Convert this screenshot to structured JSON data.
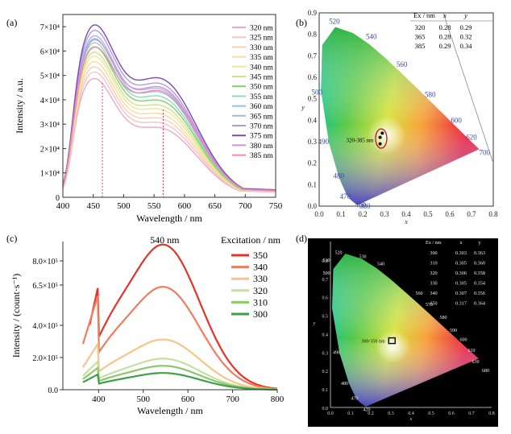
{
  "chart_data": [
    {
      "panel": "(a)",
      "type": "line",
      "xlabel": "Wavelength / nm",
      "ylabel": "Intensity / a.u.",
      "xlim": [
        400,
        750
      ],
      "ylim": [
        0,
        75000
      ],
      "x_ticks": [
        "400",
        "450",
        "500",
        "550",
        "600",
        "650",
        "700",
        "750"
      ],
      "y_ticks": [
        "0",
        "1×10⁴",
        "2×10⁴",
        "3×10⁴",
        "4×10⁴",
        "5×10⁴",
        "6×10⁴",
        "7×10⁴"
      ],
      "marker_lines_x": [
        465,
        565
      ],
      "legend_position": "top-right",
      "series": [
        {
          "name": "320 nm",
          "color": "#f4a6c4",
          "peak": 48000
        },
        {
          "name": "325 nm",
          "color": "#f7c2c8",
          "peak": 50500
        },
        {
          "name": "330 nm",
          "color": "#f8d0b4",
          "peak": 52500
        },
        {
          "name": "335 nm",
          "color": "#f6dca0",
          "peak": 54500
        },
        {
          "name": "340 nm",
          "color": "#f0e690",
          "peak": 56500
        },
        {
          "name": "345 nm",
          "color": "#cde28c",
          "peak": 58000
        },
        {
          "name": "350 nm",
          "color": "#7fcf6a",
          "peak": 60000
        },
        {
          "name": "355 nm",
          "color": "#8fd9c0",
          "peak": 61500
        },
        {
          "name": "360 nm",
          "color": "#8ec7e6",
          "peak": 63000
        },
        {
          "name": "365 nm",
          "color": "#a4b9ea",
          "peak": 64000
        },
        {
          "name": "370 nm",
          "color": "#b39ae0",
          "peak": 66000
        },
        {
          "name": "375 nm",
          "color": "#7b4bb3",
          "peak": 68000
        },
        {
          "name": "380 nm",
          "color": "#d88fd0",
          "peak": 62000
        },
        {
          "name": "385 nm",
          "color": "#f08aa8",
          "peak": 59000
        }
      ]
    },
    {
      "panel": "(b)",
      "type": "scatter",
      "xlabel": "x",
      "ylabel": "y",
      "xlim": [
        0,
        0.8
      ],
      "ylim": [
        0,
        0.9
      ],
      "x_ticks": [
        "0.0",
        "0.1",
        "0.2",
        "0.3",
        "0.4",
        "0.5",
        "0.6",
        "0.7",
        "0.8"
      ],
      "y_ticks": [
        "0.0",
        "0.1",
        "0.2",
        "0.3",
        "0.4",
        "0.5",
        "0.6",
        "0.7",
        "0.8",
        "0.9"
      ],
      "annotation": "320-385 nm",
      "locus_labels": [
        "460",
        "470",
        "480",
        "490",
        "500",
        "520",
        "540",
        "560",
        "580",
        "600",
        "620",
        "700",
        "380"
      ],
      "table_headers": [
        "Ex / nm",
        "x",
        "y"
      ],
      "table_rows": [
        [
          "320",
          "0.28",
          "0.29"
        ],
        [
          "365",
          "0.28",
          "0.32"
        ],
        [
          "385",
          "0.29",
          "0.34"
        ]
      ],
      "points": [
        {
          "x": 0.28,
          "y": 0.29
        },
        {
          "x": 0.28,
          "y": 0.32
        },
        {
          "x": 0.29,
          "y": 0.34
        }
      ]
    },
    {
      "panel": "(c)",
      "type": "line",
      "title": "540 nm",
      "xlabel": "Wavelength / nm",
      "ylabel": "Intensity / (count·s⁻¹)",
      "xlim": [
        320,
        800
      ],
      "ylim": [
        0,
        920000
      ],
      "x_ticks": [
        "400",
        "500",
        "600",
        "700",
        "800"
      ],
      "y_ticks": [
        "0.0",
        "2.0×10⁵",
        "4.0×10⁵",
        "6.5×10⁵",
        "8.0×10⁵"
      ],
      "legend_title": "Excitation / nm",
      "legend_position": "top-right",
      "series": [
        {
          "name": "350",
          "color": "#e5332a",
          "start": 380,
          "peak": 910000
        },
        {
          "name": "340",
          "color": "#f07c5e",
          "start": 365,
          "peak": 645000
        },
        {
          "name": "330",
          "color": "#f7c58a",
          "start": 365,
          "peak": 315000
        },
        {
          "name": "320",
          "color": "#c7dfa0",
          "start": 365,
          "peak": 195000
        },
        {
          "name": "310",
          "color": "#8cc76a",
          "start": 365,
          "peak": 150000
        },
        {
          "name": "300",
          "color": "#3f9e48",
          "start": 365,
          "peak": 105000
        }
      ]
    },
    {
      "panel": "(d)",
      "type": "scatter",
      "xlabel": "x",
      "ylabel": "y",
      "xlim": [
        0,
        0.8
      ],
      "ylim": [
        0,
        0.9
      ],
      "x_ticks": [
        "0.0",
        "0.1",
        "0.2",
        "0.3",
        "0.4",
        "0.5",
        "0.6",
        "0.7",
        "0.8"
      ],
      "y_ticks": [
        "0.0",
        "0.1",
        "0.2",
        "0.3",
        "0.4",
        "0.5",
        "0.6",
        "0.7",
        "0.8"
      ],
      "annotation": "300-350 nm",
      "locus_labels": [
        "420",
        "470",
        "480",
        "490",
        "500",
        "510",
        "520",
        "530",
        "540",
        "560",
        "570",
        "580",
        "590",
        "600",
        "610",
        "630",
        "680"
      ],
      "table_headers": [
        "Ex / nm",
        "x",
        "y"
      ],
      "table_rows": [
        [
          "300",
          "0.303",
          "0.363"
        ],
        [
          "310",
          "0.305",
          "0.360"
        ],
        [
          "320",
          "0.306",
          "0.358"
        ],
        [
          "330",
          "0.305",
          "0.354"
        ],
        [
          "340",
          "0.307",
          "0.356"
        ],
        [
          "350",
          "0.317",
          "0.364"
        ]
      ],
      "points": [
        {
          "x": 0.305,
          "y": 0.36
        }
      ]
    }
  ]
}
